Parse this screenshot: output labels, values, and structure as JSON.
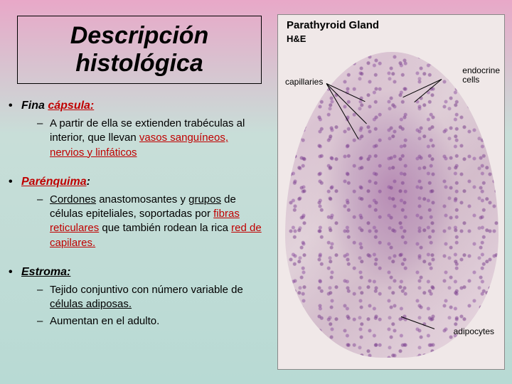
{
  "title": "Descripción histológica",
  "sections": [
    {
      "heading_pre": "Fina ",
      "heading_red": "cápsula:",
      "items": [
        {
          "parts": [
            {
              "t": "A partir de ella se extienden trabéculas al interior, que llevan "
            },
            {
              "t": "vasos sanguíneos, nervios y linfáticos",
              "red": true,
              "u": true
            }
          ]
        }
      ]
    },
    {
      "heading_pre": "",
      "heading_red": "Parénquima",
      "heading_suffix": ":",
      "items": [
        {
          "parts": [
            {
              "t": "Cordones",
              "u": true
            },
            {
              "t": " anastomosantes y "
            },
            {
              "t": "grupos",
              "u": true
            },
            {
              "t": " de células epiteliales, soportadas por "
            },
            {
              "t": "fibras reticulares",
              "red": true,
              "u": true
            },
            {
              "t": " que también rodean la rica "
            },
            {
              "t": "red de capilares.",
              "red": true,
              "u": true
            }
          ]
        }
      ]
    },
    {
      "heading_pre": "",
      "heading_red": "Estroma:",
      "red_heading": false,
      "items": [
        {
          "parts": [
            {
              "t": "Tejido conjuntivo con número variable de "
            },
            {
              "t": "células adiposas.",
              "u": true
            }
          ]
        },
        {
          "parts": [
            {
              "t": "Aumentan en el adulto."
            }
          ]
        }
      ]
    }
  ],
  "figure": {
    "title": "Parathyroid Gland",
    "subtitle": "H&E",
    "labels": {
      "capillaries": "capillaries",
      "endocrine": "endocrine\ncells",
      "adipocytes": "adipocytes"
    }
  },
  "colors": {
    "red": "#c00000",
    "black": "#000000"
  }
}
